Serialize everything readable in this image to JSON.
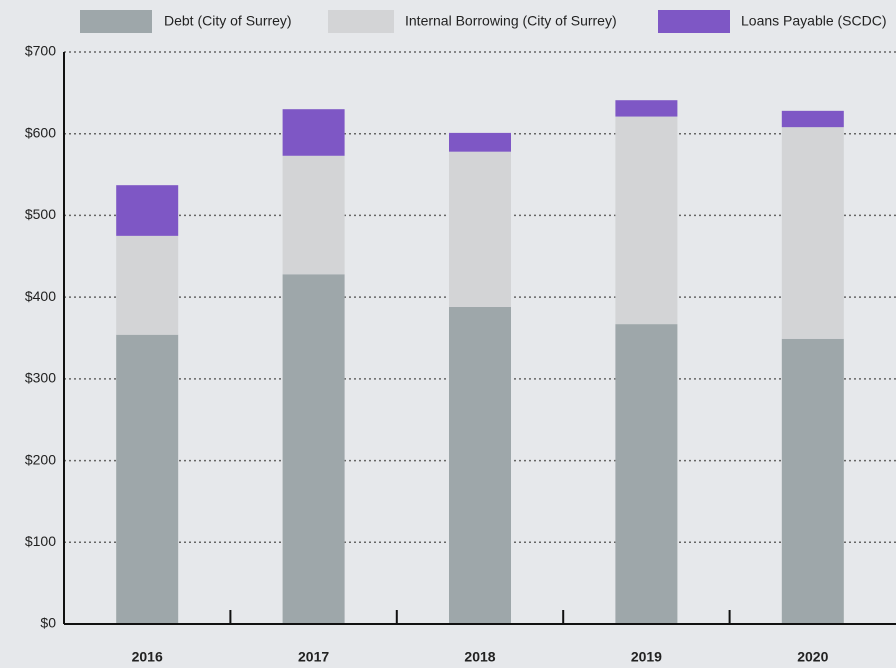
{
  "chart_data": {
    "type": "stacked_bar",
    "categories": [
      "2016",
      "2017",
      "2018",
      "2019",
      "2020"
    ],
    "series": [
      {
        "name": "Debt (City of Surrey)",
        "color": "#9ea7aa",
        "values": [
          354,
          428,
          388,
          367,
          349
        ]
      },
      {
        "name": "Internal Borrowing (City of Surrey)",
        "color": "#d3d4d6",
        "values": [
          121,
          145,
          190,
          254,
          259
        ]
      },
      {
        "name": "Loans Payable (SCDC)",
        "color": "#7e57c5",
        "values": [
          62,
          57,
          23,
          20,
          20
        ]
      }
    ],
    "ylim": [
      0,
      700
    ],
    "yticks": [
      {
        "value": 0,
        "label": "$0"
      },
      {
        "value": 100,
        "label": "$100"
      },
      {
        "value": 200,
        "label": "$200"
      },
      {
        "value": 300,
        "label": "$300"
      },
      {
        "value": 400,
        "label": "$400"
      },
      {
        "value": 500,
        "label": "$500"
      },
      {
        "value": 600,
        "label": "$600"
      },
      {
        "value": 700,
        "label": "$700"
      }
    ],
    "grid": true,
    "legend": "top"
  }
}
